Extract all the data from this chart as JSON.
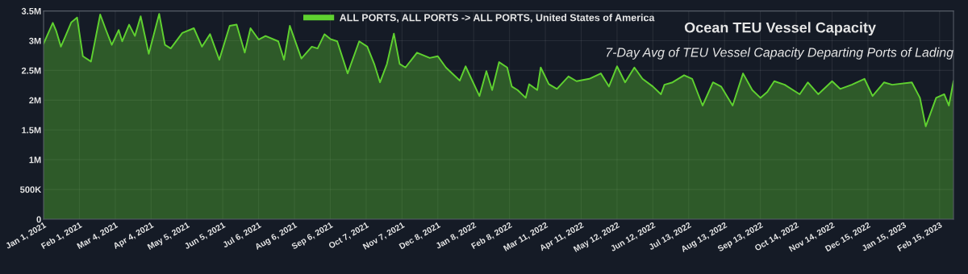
{
  "chart_data": {
    "type": "area",
    "title": "Ocean TEU Vessel Capacity",
    "subtitle": "7-Day Avg of TEU Vessel Capacity Departing Ports of Lading",
    "x": [
      "2021-01-01",
      "2021-01-09",
      "2021-01-12",
      "2021-01-16",
      "2021-01-20",
      "2021-01-25",
      "2021-01-30",
      "2021-02-04",
      "2021-02-11",
      "2021-02-19",
      "2021-02-24",
      "2021-03-01",
      "2021-03-07",
      "2021-03-10",
      "2021-03-16",
      "2021-03-21",
      "2021-03-26",
      "2021-04-02",
      "2021-04-11",
      "2021-04-16",
      "2021-04-21",
      "2021-05-01",
      "2021-05-11",
      "2021-05-18",
      "2021-05-25",
      "2021-06-02",
      "2021-06-11",
      "2021-06-17",
      "2021-06-24",
      "2021-06-29",
      "2021-07-06",
      "2021-07-12",
      "2021-07-23",
      "2021-07-28",
      "2021-08-02",
      "2021-08-12",
      "2021-08-21",
      "2021-08-26",
      "2021-09-01",
      "2021-09-06",
      "2021-09-12",
      "2021-09-21",
      "2021-10-01",
      "2021-10-08",
      "2021-10-14",
      "2021-10-19",
      "2021-10-25",
      "2021-10-31",
      "2021-11-05",
      "2021-11-10",
      "2021-11-20",
      "2021-12-01",
      "2021-12-08",
      "2021-12-15",
      "2021-12-27",
      "2022-01-01",
      "2022-01-13",
      "2022-01-19",
      "2022-01-24",
      "2022-01-30",
      "2022-02-06",
      "2022-02-10",
      "2022-02-15",
      "2022-02-22",
      "2022-02-25",
      "2022-03-04",
      "2022-03-07",
      "2022-03-14",
      "2022-03-21",
      "2022-03-31",
      "2022-04-07",
      "2022-04-18",
      "2022-04-28",
      "2022-05-05",
      "2022-05-12",
      "2022-05-19",
      "2022-05-27",
      "2022-06-03",
      "2022-06-12",
      "2022-06-19",
      "2022-06-22",
      "2022-06-29",
      "2022-07-09",
      "2022-07-16",
      "2022-07-25",
      "2022-08-03",
      "2022-08-10",
      "2022-08-20",
      "2022-08-29",
      "2022-09-06",
      "2022-09-13",
      "2022-09-19",
      "2022-09-25",
      "2022-10-04",
      "2022-10-17",
      "2022-10-24",
      "2022-11-02",
      "2022-11-14",
      "2022-11-21",
      "2022-12-01",
      "2022-12-12",
      "2022-12-19",
      "2022-12-29",
      "2023-01-05",
      "2023-01-22",
      "2023-01-29",
      "2023-02-03",
      "2023-02-12",
      "2023-02-19",
      "2023-02-23",
      "2023-02-27"
    ],
    "series": [
      {
        "name": "ALL PORTS, ALL PORTS -> ALL PORTS, United States of America",
        "color": "#5fd130",
        "values": [
          2950000,
          3300000,
          3160000,
          2900000,
          3080000,
          3310000,
          3390000,
          2740000,
          2650000,
          3440000,
          3180000,
          2930000,
          3180000,
          2990000,
          3270000,
          3080000,
          3410000,
          2780000,
          3450000,
          2930000,
          2870000,
          3130000,
          3210000,
          2900000,
          3110000,
          2680000,
          3250000,
          3270000,
          2800000,
          3210000,
          3020000,
          3080000,
          2990000,
          2680000,
          3250000,
          2700000,
          2900000,
          2870000,
          3110000,
          3030000,
          2990000,
          2450000,
          2990000,
          2900000,
          2610000,
          2300000,
          2610000,
          3120000,
          2610000,
          2550000,
          2800000,
          2710000,
          2740000,
          2550000,
          2330000,
          2570000,
          2070000,
          2490000,
          2170000,
          2640000,
          2550000,
          2230000,
          2170000,
          2040000,
          2270000,
          2170000,
          2550000,
          2270000,
          2190000,
          2400000,
          2320000,
          2360000,
          2450000,
          2230000,
          2570000,
          2300000,
          2550000,
          2360000,
          2230000,
          2100000,
          2260000,
          2300000,
          2420000,
          2360000,
          1910000,
          2300000,
          2230000,
          1910000,
          2450000,
          2170000,
          2040000,
          2140000,
          2320000,
          2260000,
          2100000,
          2300000,
          2100000,
          2320000,
          2190000,
          2260000,
          2360000,
          2070000,
          2300000,
          2260000,
          2300000,
          2040000,
          1560000,
          2040000,
          2100000,
          1910000,
          2320000
        ]
      }
    ],
    "xlim": [
      "2021-01-01",
      "2023-02-27"
    ],
    "xticks": [
      {
        "value": "2021-01-01",
        "label": "Jan 1, 2021"
      },
      {
        "value": "2021-02-01",
        "label": "Feb 1, 2021"
      },
      {
        "value": "2021-03-04",
        "label": "Mar 4, 2021"
      },
      {
        "value": "2021-04-04",
        "label": "Apr 4, 2021"
      },
      {
        "value": "2021-05-05",
        "label": "May 5, 2021"
      },
      {
        "value": "2021-06-05",
        "label": "Jun 5, 2021"
      },
      {
        "value": "2021-07-06",
        "label": "Jul 6, 2021"
      },
      {
        "value": "2021-08-06",
        "label": "Aug 6, 2021"
      },
      {
        "value": "2021-09-06",
        "label": "Sep 6, 2021"
      },
      {
        "value": "2021-10-07",
        "label": "Oct 7, 2021"
      },
      {
        "value": "2021-11-07",
        "label": "Nov 7, 2021"
      },
      {
        "value": "2021-12-08",
        "label": "Dec 8, 2021"
      },
      {
        "value": "2022-01-08",
        "label": "Jan 8, 2022"
      },
      {
        "value": "2022-02-08",
        "label": "Feb 8, 2022"
      },
      {
        "value": "2022-03-11",
        "label": "Mar 11, 2022"
      },
      {
        "value": "2022-04-11",
        "label": "Apr 11, 2022"
      },
      {
        "value": "2022-05-12",
        "label": "May 12, 2022"
      },
      {
        "value": "2022-06-12",
        "label": "Jun 12, 2022"
      },
      {
        "value": "2022-07-13",
        "label": "Jul 13, 2022"
      },
      {
        "value": "2022-08-13",
        "label": "Aug 13, 2022"
      },
      {
        "value": "2022-09-13",
        "label": "Sep 13, 2022"
      },
      {
        "value": "2022-10-14",
        "label": "Oct 14, 2022"
      },
      {
        "value": "2022-11-14",
        "label": "Nov 14, 2022"
      },
      {
        "value": "2022-12-15",
        "label": "Dec 15, 2022"
      },
      {
        "value": "2023-01-15",
        "label": "Jan 15, 2023"
      },
      {
        "value": "2023-02-15",
        "label": "Feb 15, 2023"
      }
    ],
    "ylim": [
      0,
      3500000
    ],
    "yticks": [
      {
        "value": 0,
        "label": "0"
      },
      {
        "value": 500000,
        "label": "500K"
      },
      {
        "value": 1000000,
        "label": "1M"
      },
      {
        "value": 1500000,
        "label": "1.5M"
      },
      {
        "value": 2000000,
        "label": "2M"
      },
      {
        "value": 2500000,
        "label": "2.5M"
      },
      {
        "value": 3000000,
        "label": "3M"
      },
      {
        "value": 3500000,
        "label": "3.5M"
      }
    ],
    "grid": true,
    "legend": "top"
  }
}
